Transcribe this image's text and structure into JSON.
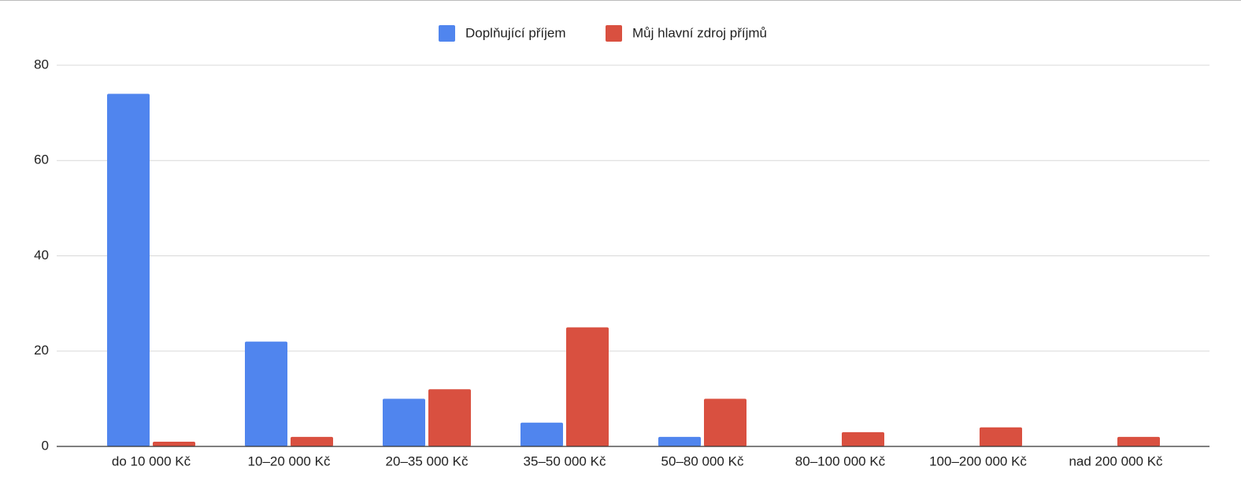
{
  "chart_data": {
    "type": "bar",
    "categories": [
      "do 10 000 Kč",
      "10–20 000 Kč",
      "20–35 000 Kč",
      "35–50 000 Kč",
      "50–80 000 Kč",
      "80–100 000 Kč",
      "100–200 000 Kč",
      "nad 200 000 Kč"
    ],
    "series": [
      {
        "name": "Doplňující příjem",
        "color": "#5085ee",
        "values": [
          74,
          22,
          10,
          5,
          2,
          0,
          0,
          0
        ]
      },
      {
        "name": "Můj hlavní zdroj příjmů",
        "color": "#d95040",
        "values": [
          1,
          2,
          12,
          25,
          10,
          3,
          4,
          2
        ]
      }
    ],
    "ylim": [
      0,
      80
    ],
    "yticks": [
      0,
      20,
      40,
      60,
      80
    ],
    "grid": true,
    "legend": "top"
  }
}
